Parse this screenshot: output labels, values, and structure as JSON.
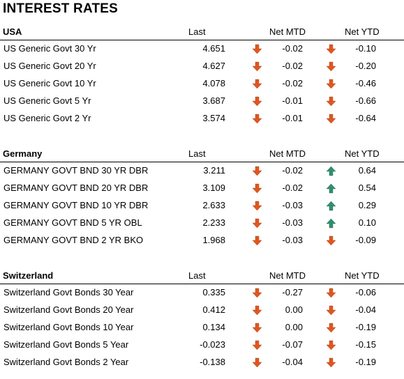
{
  "title": "INTEREST RATES",
  "sections": [
    {
      "name": "USA",
      "col_last": "Last",
      "col_mtd": "Net MTD",
      "col_ytd": "Net YTD",
      "rows": [
        {
          "name": "US Generic Govt 30 Yr",
          "last": "4.651",
          "mtd": "-0.02",
          "mtd_dir": "down",
          "ytd": "-0.10",
          "ytd_dir": "down"
        },
        {
          "name": "US Generic Govt 20 Yr",
          "last": "4.627",
          "mtd": "-0.02",
          "mtd_dir": "down",
          "ytd": "-0.20",
          "ytd_dir": "down"
        },
        {
          "name": "US Generic Govt 10 Yr",
          "last": "4.078",
          "mtd": "-0.02",
          "mtd_dir": "down",
          "ytd": "-0.46",
          "ytd_dir": "down"
        },
        {
          "name": "US Generic Govt 5 Yr",
          "last": "3.687",
          "mtd": "-0.01",
          "mtd_dir": "down",
          "ytd": "-0.66",
          "ytd_dir": "down"
        },
        {
          "name": "US Generic Govt 2 Yr",
          "last": "3.574",
          "mtd": "-0.01",
          "mtd_dir": "down",
          "ytd": "-0.64",
          "ytd_dir": "down"
        }
      ]
    },
    {
      "name": "Germany",
      "col_last": "Last",
      "col_mtd": "Net MTD",
      "col_ytd": "Net YTD",
      "rows": [
        {
          "name": "GERMANY GOVT BND 30 YR DBR",
          "last": "3.211",
          "mtd": "-0.02",
          "mtd_dir": "down",
          "ytd": "0.64",
          "ytd_dir": "up"
        },
        {
          "name": "GERMANY GOVT BND 20 YR DBR",
          "last": "3.109",
          "mtd": "-0.02",
          "mtd_dir": "down",
          "ytd": "0.54",
          "ytd_dir": "up"
        },
        {
          "name": "GERMANY GOVT BND 10 YR DBR",
          "last": "2.633",
          "mtd": "-0.03",
          "mtd_dir": "down",
          "ytd": "0.29",
          "ytd_dir": "up"
        },
        {
          "name": "GERMANY GOVT BND 5 YR OBL",
          "last": "2.233",
          "mtd": "-0.03",
          "mtd_dir": "down",
          "ytd": "0.10",
          "ytd_dir": "up"
        },
        {
          "name": "GERMANY GOVT BND 2 YR BKO",
          "last": "1.968",
          "mtd": "-0.03",
          "mtd_dir": "down",
          "ytd": "-0.09",
          "ytd_dir": "down"
        }
      ]
    },
    {
      "name": "Switzerland",
      "col_last": "Last",
      "col_mtd": "Net MTD",
      "col_ytd": "Net YTD",
      "rows": [
        {
          "name": "Switzerland Govt Bonds 30 Year",
          "last": "0.335",
          "mtd": "-0.27",
          "mtd_dir": "down",
          "ytd": "-0.06",
          "ytd_dir": "down"
        },
        {
          "name": "Switzerland Govt Bonds 20 Year",
          "last": "0.412",
          "mtd": "0.00",
          "mtd_dir": "down",
          "ytd": "-0.04",
          "ytd_dir": "down"
        },
        {
          "name": "Switzerland Govt Bonds 10 Year",
          "last": "0.134",
          "mtd": "0.00",
          "mtd_dir": "down",
          "ytd": "-0.19",
          "ytd_dir": "down"
        },
        {
          "name": "Switzerland Govt Bonds 5 Year",
          "last": "-0.023",
          "mtd": "-0.07",
          "mtd_dir": "down",
          "ytd": "-0.15",
          "ytd_dir": "down"
        },
        {
          "name": "Switzerland Govt Bonds 2 Year",
          "last": "-0.138",
          "mtd": "-0.04",
          "mtd_dir": "down",
          "ytd": "-0.19",
          "ytd_dir": "down"
        }
      ]
    }
  ],
  "colors": {
    "down_arrow": "#e2551f",
    "up_arrow": "#2f8f6f"
  }
}
